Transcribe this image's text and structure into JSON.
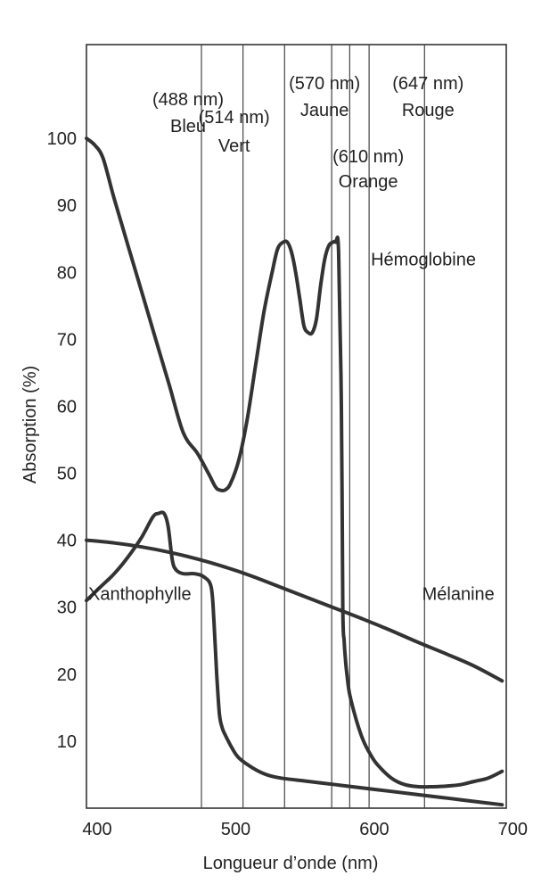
{
  "chart_data": {
    "type": "line",
    "title": "",
    "xlabel": "Longueur d’onde (nm)",
    "ylabel": "Absorption (%)",
    "xlim": [
      400,
      703
    ],
    "ylim": [
      0,
      114
    ],
    "x_ticks": [
      400,
      500,
      600,
      700
    ],
    "y_ticks": [
      10,
      20,
      30,
      40,
      50,
      60,
      70,
      80,
      90,
      100
    ],
    "grid": false,
    "bands": [
      {
        "wavelength": 483,
        "text_nm": "(488 nm)",
        "text_name": "Bleu"
      },
      {
        "wavelength": 513,
        "text_nm": "(514 nm)",
        "text_name": "Vert"
      },
      {
        "wavelength": 543,
        "text_nm": "",
        "text_name": ""
      },
      {
        "wavelength": 577,
        "text_nm": "(570 nm)",
        "text_name": "Jaune"
      },
      {
        "wavelength": 590,
        "text_nm": "",
        "text_name": ""
      },
      {
        "wavelength": 604,
        "text_nm": "(610 nm)",
        "text_name": "Orange"
      },
      {
        "wavelength": 644,
        "text_nm": "(647 nm)",
        "text_name": "Rouge"
      }
    ],
    "series": [
      {
        "name": "Hémoglobine",
        "x": [
          400,
          406,
          412,
          420,
          430,
          440,
          450,
          460,
          470,
          480,
          488,
          493,
          496,
          500,
          504,
          510,
          516,
          522,
          528,
          534,
          538,
          542,
          545,
          548,
          551,
          554,
          557,
          560,
          563,
          566,
          569,
          572,
          575,
          578,
          580,
          582,
          584,
          585,
          586,
          587,
          588,
          590,
          595,
          600,
          605,
          610,
          620,
          630,
          640,
          650,
          660,
          670,
          680,
          690,
          700
        ],
        "y": [
          100,
          99,
          97,
          91,
          84,
          77,
          70,
          63,
          56,
          53,
          50,
          48,
          47.5,
          47.5,
          48.5,
          52,
          58,
          66,
          74,
          80,
          83.5,
          84.5,
          84.5,
          83,
          80,
          76,
          72,
          71,
          71,
          73,
          78,
          82,
          84,
          84.5,
          84.5,
          83,
          60,
          30,
          25,
          22,
          20,
          17,
          13,
          10,
          8,
          6.5,
          4.5,
          3.5,
          3.2,
          3.2,
          3.3,
          3.5,
          4,
          4.5,
          5.5
        ]
      },
      {
        "name": "Xanthophylle",
        "x": [
          400,
          410,
          420,
          430,
          440,
          448,
          452,
          456,
          459,
          462,
          465,
          470,
          478,
          485,
          490,
          492,
          494,
          496,
          498,
          500,
          505,
          510,
          520,
          530,
          540,
          560,
          580,
          600,
          620,
          640,
          660,
          680,
          700
        ],
        "y": [
          31,
          33,
          35,
          37.5,
          40.5,
          43.5,
          44,
          44,
          42,
          37,
          35.5,
          35,
          35,
          34.5,
          33,
          28,
          20,
          14,
          12,
          11,
          9,
          7.5,
          6,
          5,
          4.5,
          4,
          3.5,
          3,
          2.5,
          2,
          1.5,
          1,
          0.5
        ]
      },
      {
        "name": "Mélanine",
        "x": [
          400,
          420,
          440,
          460,
          480,
          500,
          520,
          540,
          560,
          580,
          600,
          620,
          640,
          660,
          680,
          700
        ],
        "y": [
          40,
          39.6,
          39,
          38.2,
          37.2,
          36,
          34.6,
          33,
          31.4,
          29.8,
          28.2,
          26.5,
          24.7,
          23,
          21.2,
          19
        ]
      }
    ],
    "series_labels": [
      {
        "text": "Hémoglobine",
        "x": 604,
        "y": 80
      },
      {
        "text": "Xanthophylle",
        "x": 400,
        "y": 30
      },
      {
        "text": "Mélanine",
        "x": 641,
        "y": 30
      }
    ],
    "colors": {
      "line": "#333333",
      "text": "#222222",
      "frame": "#333333"
    }
  }
}
